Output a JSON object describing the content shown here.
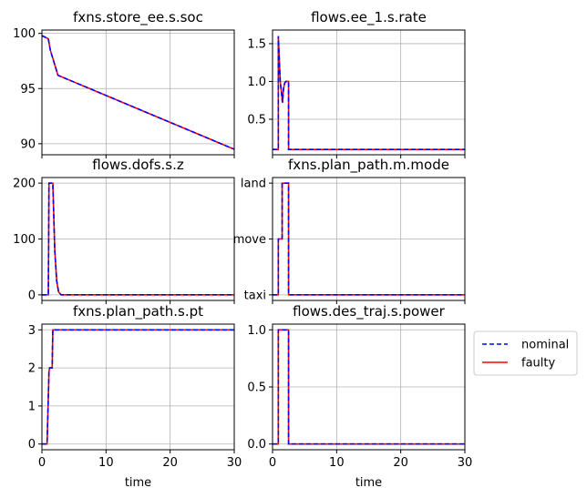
{
  "chart_data": [
    {
      "type": "line",
      "title": "fxns.store_ee.s.soc",
      "xlabel": "",
      "ylabel": "",
      "xlim": [
        0,
        30
      ],
      "ylim": [
        89,
        100.3
      ],
      "xticks": [
        0,
        10,
        20,
        30
      ],
      "show_xtick_labels": false,
      "yticks": [
        90,
        95,
        100
      ],
      "ytick_labels": [
        "90",
        "95",
        "100"
      ],
      "grid": true,
      "series": [
        {
          "name": "nominal",
          "x": [
            0,
            1.0,
            1.3,
            2.5,
            30
          ],
          "y": [
            99.8,
            99.5,
            98.5,
            96.2,
            89.5
          ]
        },
        {
          "name": "faulty",
          "x": [
            0,
            1.0,
            1.3,
            2.5,
            30
          ],
          "y": [
            99.8,
            99.5,
            98.5,
            96.2,
            89.5
          ]
        }
      ]
    },
    {
      "type": "line",
      "title": "flows.ee_1.s.rate",
      "xlabel": "",
      "ylabel": "",
      "xlim": [
        0,
        30
      ],
      "ylim": [
        0.03,
        1.68
      ],
      "xticks": [
        0,
        10,
        20,
        30
      ],
      "show_xtick_labels": false,
      "yticks": [
        0.5,
        1.0,
        1.5
      ],
      "ytick_labels": [
        "0.5",
        "1.0",
        "1.5"
      ],
      "grid": true,
      "series": [
        {
          "name": "nominal",
          "x": [
            0,
            0.9,
            0.9,
            1.2,
            1.4,
            1.55,
            1.7,
            1.9,
            2.1,
            2.3,
            2.5,
            2.5,
            30
          ],
          "y": [
            0.1,
            0.1,
            1.6,
            1.0,
            0.85,
            0.72,
            0.9,
            0.98,
            1.0,
            1.0,
            1.0,
            0.1,
            0.1
          ]
        },
        {
          "name": "faulty",
          "x": [
            0,
            0.9,
            0.9,
            1.2,
            1.4,
            1.55,
            1.7,
            1.9,
            2.1,
            2.3,
            2.5,
            2.5,
            30
          ],
          "y": [
            0.1,
            0.1,
            1.6,
            1.0,
            0.85,
            0.72,
            0.9,
            0.98,
            1.0,
            1.0,
            1.0,
            0.1,
            0.1
          ]
        }
      ]
    },
    {
      "type": "line",
      "title": "flows.dofs.s.z",
      "xlabel": "",
      "ylabel": "",
      "xlim": [
        0,
        30
      ],
      "ylim": [
        -10,
        210
      ],
      "xticks": [
        0,
        10,
        20,
        30
      ],
      "show_xtick_labels": false,
      "yticks": [
        0,
        100,
        200
      ],
      "ytick_labels": [
        "0",
        "100",
        "200"
      ],
      "grid": true,
      "series": [
        {
          "name": "nominal",
          "x": [
            0,
            1.0,
            1.1,
            1.7,
            1.8,
            2.0,
            2.3,
            2.6,
            3.0,
            30
          ],
          "y": [
            0,
            0,
            200,
            200,
            160,
            80,
            25,
            5,
            0,
            0
          ]
        },
        {
          "name": "faulty",
          "x": [
            0,
            1.0,
            1.1,
            1.7,
            1.8,
            2.0,
            2.3,
            2.6,
            3.0,
            30
          ],
          "y": [
            0,
            0,
            200,
            200,
            160,
            80,
            25,
            5,
            0,
            0
          ]
        }
      ]
    },
    {
      "type": "line",
      "title": "fxns.plan_path.m.mode",
      "xlabel": "",
      "ylabel": "",
      "xlim": [
        0,
        30
      ],
      "ylim": [
        -0.1,
        2.1
      ],
      "xticks": [
        0,
        10,
        20,
        30
      ],
      "show_xtick_labels": false,
      "yticks": [
        0,
        1,
        2
      ],
      "ytick_labels": [
        "taxi",
        "move",
        "land"
      ],
      "grid": true,
      "series": [
        {
          "name": "nominal",
          "x": [
            0,
            0.9,
            0.9,
            1.5,
            1.5,
            2.5,
            2.5,
            30
          ],
          "y": [
            0,
            0,
            1,
            1,
            2,
            2,
            0,
            0
          ]
        },
        {
          "name": "faulty",
          "x": [
            0,
            0.9,
            0.9,
            1.5,
            1.5,
            2.5,
            2.5,
            30
          ],
          "y": [
            0,
            0,
            1,
            1,
            2,
            2,
            0,
            0
          ]
        }
      ]
    },
    {
      "type": "line",
      "title": "fxns.plan_path.s.pt",
      "xlabel": "time",
      "ylabel": "",
      "xlim": [
        0,
        30
      ],
      "ylim": [
        -0.15,
        3.15
      ],
      "xticks": [
        0,
        10,
        20,
        30
      ],
      "show_xtick_labels": true,
      "xtick_labels": [
        "0",
        "10",
        "20",
        "30"
      ],
      "yticks": [
        0,
        1,
        2,
        3
      ],
      "ytick_labels": [
        "0",
        "1",
        "2",
        "3"
      ],
      "grid": true,
      "series": [
        {
          "name": "nominal",
          "x": [
            0,
            0.8,
            1.1,
            1.2,
            1.6,
            1.7,
            30
          ],
          "y": [
            0,
            0,
            1.9,
            2.0,
            2.0,
            3.0,
            3.0
          ]
        },
        {
          "name": "faulty",
          "x": [
            0,
            0.8,
            1.1,
            1.2,
            1.6,
            1.7,
            30
          ],
          "y": [
            0,
            0,
            1.9,
            2.0,
            2.0,
            3.0,
            3.0
          ]
        }
      ]
    },
    {
      "type": "line",
      "title": "flows.des_traj.s.power",
      "xlabel": "time",
      "ylabel": "",
      "xlim": [
        0,
        30
      ],
      "ylim": [
        -0.05,
        1.05
      ],
      "xticks": [
        0,
        10,
        20,
        30
      ],
      "show_xtick_labels": true,
      "xtick_labels": [
        "0",
        "10",
        "20",
        "30"
      ],
      "yticks": [
        0,
        0.5,
        1.0
      ],
      "ytick_labels": [
        "0.0",
        "0.5",
        "1.0"
      ],
      "grid": true,
      "series": [
        {
          "name": "nominal",
          "x": [
            0,
            0.9,
            0.9,
            2.5,
            2.5,
            30
          ],
          "y": [
            0,
            0,
            1,
            1,
            0,
            0
          ]
        },
        {
          "name": "faulty",
          "x": [
            0,
            0.9,
            0.9,
            2.5,
            2.5,
            30
          ],
          "y": [
            0,
            0,
            1,
            1,
            0,
            0
          ]
        }
      ]
    }
  ],
  "legend": {
    "placement": "right",
    "entries": [
      {
        "label": "nominal",
        "color": "#0000ff",
        "style": "dashed"
      },
      {
        "label": "faulty",
        "color": "#ff0000",
        "style": "solid"
      }
    ]
  },
  "colors": {
    "nominal": "#0000ff",
    "faulty": "#ff0000",
    "grid": "#b0b0b0",
    "axes": "#000000"
  }
}
